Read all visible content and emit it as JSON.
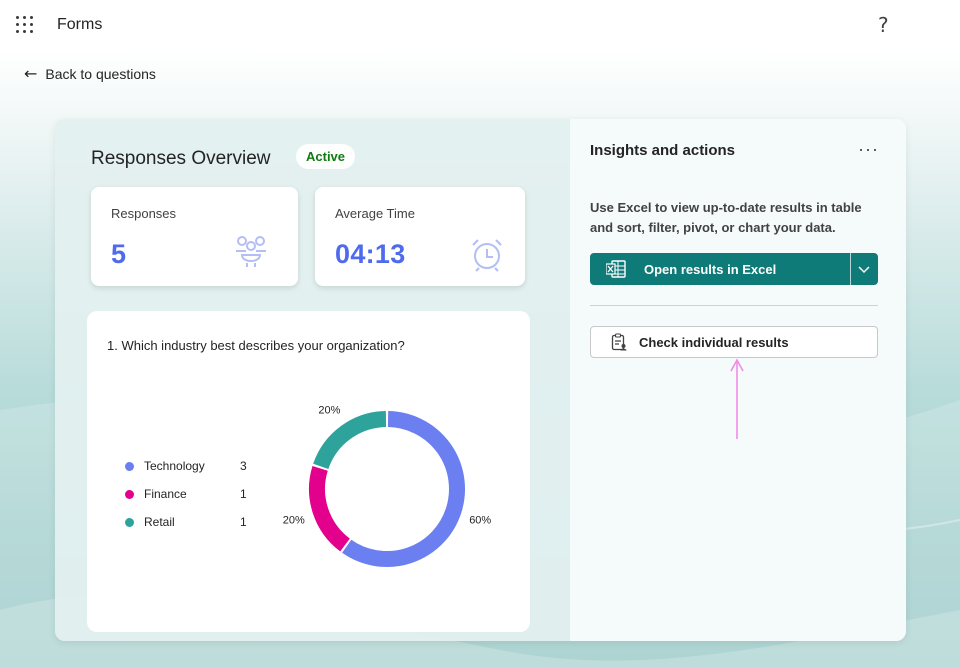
{
  "app": {
    "title": "Forms",
    "help_glyph": "?"
  },
  "nav": {
    "back_label": "Back to questions",
    "back_glyph": "←"
  },
  "overview": {
    "title": "Responses Overview",
    "status": "Active",
    "status_color": "#107c10"
  },
  "stats": {
    "responses": {
      "label": "Responses",
      "value": "5",
      "icon": "people-icon"
    },
    "average_time": {
      "label": "Average Time",
      "value": "04:13",
      "icon": "alarm-clock-icon"
    },
    "value_color": "#4f6bed"
  },
  "question": {
    "text": "1. Which industry best describes your organization?",
    "options": [
      {
        "name": "Technology",
        "count": "3",
        "color": "#6b7ff0"
      },
      {
        "name": "Finance",
        "count": "1",
        "color": "#e3008c"
      },
      {
        "name": "Retail",
        "count": "1",
        "color": "#2ea39b"
      }
    ]
  },
  "chart_data": {
    "type": "pie",
    "style": "donut",
    "categories": [
      "Technology",
      "Finance",
      "Retail"
    ],
    "values": [
      3,
      1,
      1
    ],
    "percent_labels": [
      "60%",
      "20%",
      "20%"
    ],
    "colors": [
      "#6b7ff0",
      "#e3008c",
      "#2ea39b"
    ],
    "legend": "left"
  },
  "insights": {
    "title": "Insights and actions",
    "more_glyph": "···",
    "description": "Use Excel to view up-to-date results in table and sort, filter, pivot, or chart your data.",
    "excel_button": "Open results in Excel",
    "excel_color": "#0f7b78",
    "check_button": "Check individual results"
  }
}
